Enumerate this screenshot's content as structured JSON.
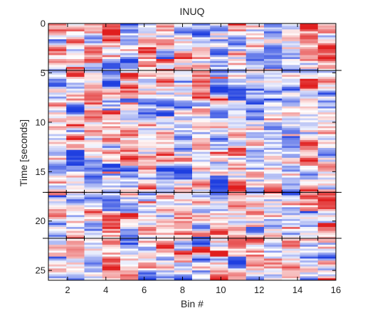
{
  "chart_data": {
    "type": "heatmap",
    "title": "INUQ",
    "xlabel": "Bin #",
    "ylabel": "Time [seconds]",
    "xlim": [
      1,
      16
    ],
    "ylim": [
      26,
      0
    ],
    "y_inverted": true,
    "x_ticks": [
      2,
      4,
      6,
      8,
      10,
      12,
      14,
      16
    ],
    "y_ticks": [
      0,
      5,
      10,
      15,
      20,
      25
    ],
    "colormap": [
      "#1f3fe0",
      "#ffffff",
      "#e01f1f"
    ],
    "color_range": [
      -1,
      1
    ],
    "columns": 16,
    "rows": 130,
    "time_step": 0.2,
    "boundary_times": [
      4.75,
      17.1,
      21.75
    ],
    "marker": "+",
    "grid": false
  }
}
